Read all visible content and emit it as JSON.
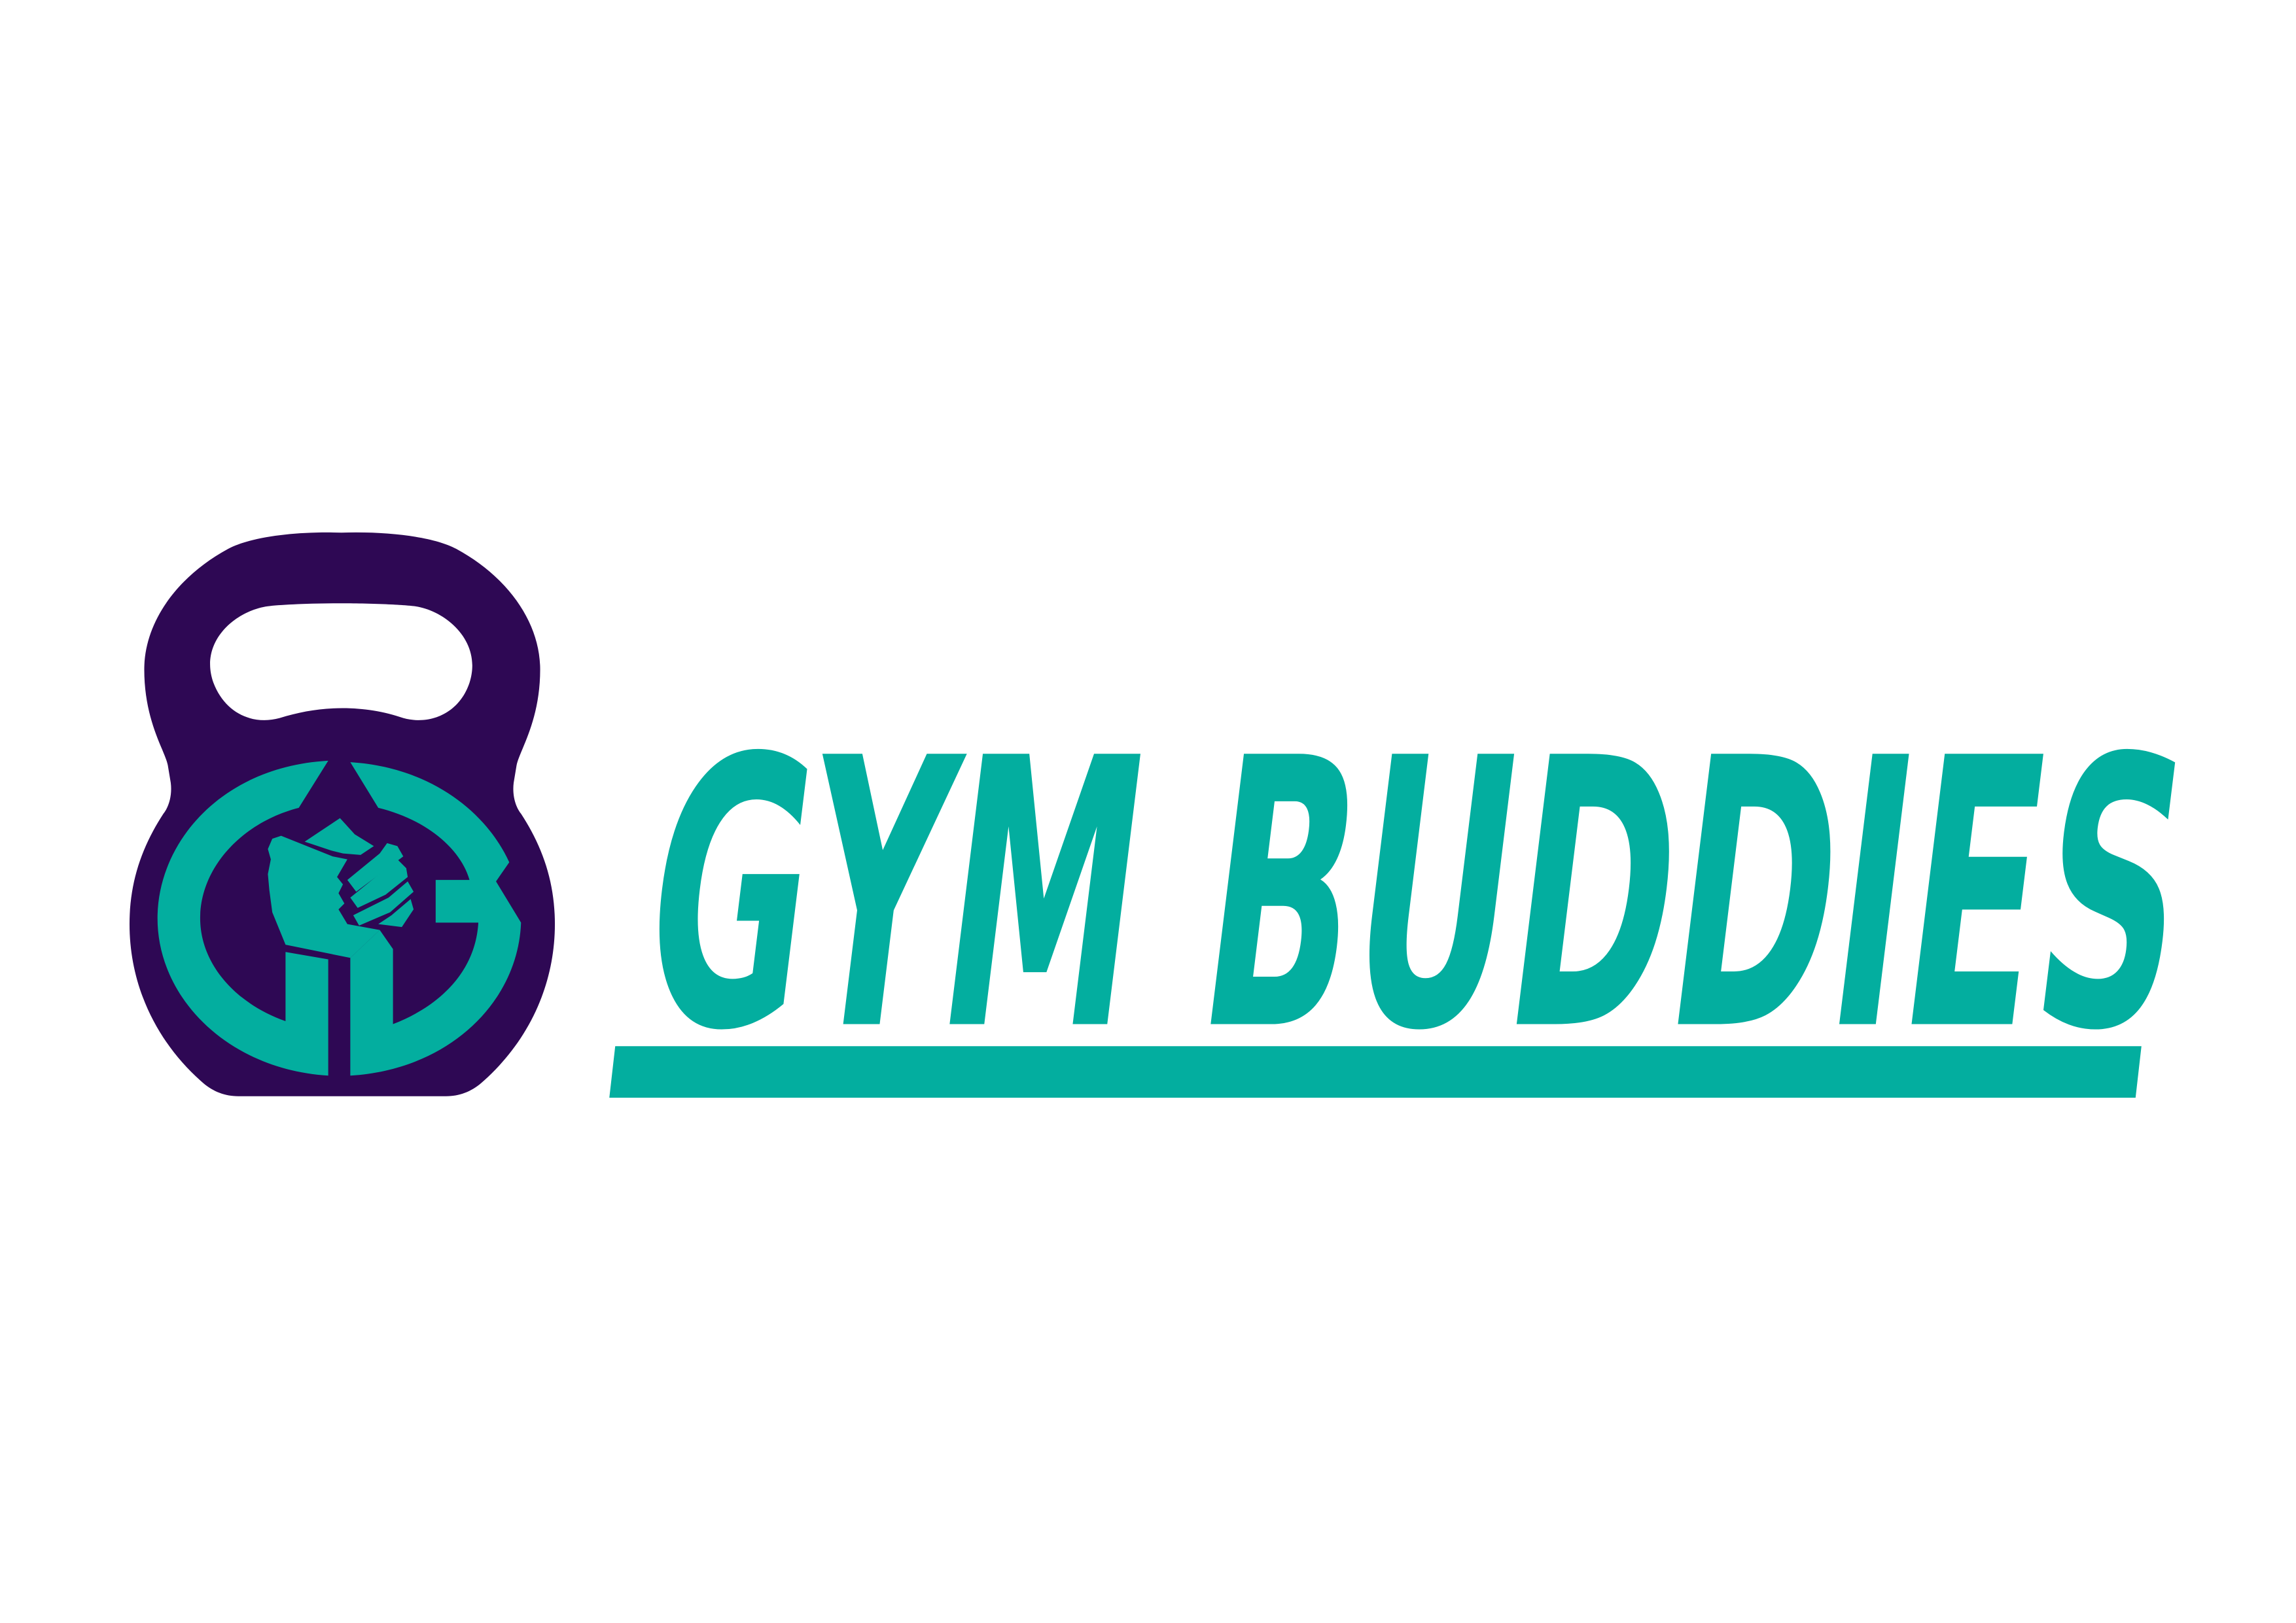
{
  "logo": {
    "brand_name": "GYM BUDDIES"
  }
}
